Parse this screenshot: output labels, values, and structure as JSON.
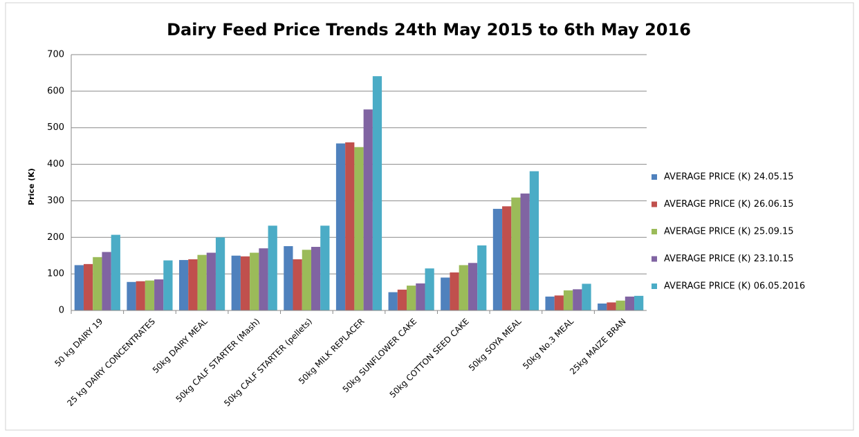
{
  "chart_data": {
    "type": "bar",
    "title": "Dairy Feed Price Trends 24th May 2015  to  6th May 2016",
    "y_label": "Price (K)",
    "categories": [
      "50 kg DAIRY 19",
      "25 kg DAIRY CONCENTRATES",
      "50kg DAIRY MEAL",
      "50kg CALF STARTER  (Mash)",
      "50kg CALF STARTER  (pellets)",
      "50kg MILK REPLACER",
      "50kg SUNFLOWER CAKE",
      "50kg COTTON SEED  CAKE",
      "50kg SOYA MEAL",
      "50kg No.3 MEAL",
      "25kg MAIZE BRAN"
    ],
    "series": [
      {
        "name": "AVERAGE PRICE (K) 24.05.15",
        "color": "#4f81bd",
        "values": [
          124,
          78,
          138,
          150,
          176,
          457,
          50,
          90,
          278,
          38,
          19
        ]
      },
      {
        "name": "AVERAGE PRICE (K) 26.06.15",
        "color": "#c0504d",
        "values": [
          127,
          80,
          140,
          148,
          140,
          460,
          57,
          104,
          285,
          41,
          22
        ]
      },
      {
        "name": "AVERAGE PRICE (K) 25.09.15",
        "color": "#9bbb59",
        "values": [
          146,
          82,
          152,
          158,
          166,
          447,
          68,
          124,
          309,
          55,
          27
        ]
      },
      {
        "name": "AVERAGE PRICE (K) 23.10.15",
        "color": "#8064a2",
        "values": [
          160,
          85,
          158,
          170,
          174,
          550,
          74,
          130,
          320,
          58,
          38
        ]
      },
      {
        "name": "AVERAGE PRICE (K) 06.05.2016",
        "color": "#4bacc6",
        "values": [
          207,
          137,
          200,
          232,
          232,
          641,
          115,
          178,
          381,
          73,
          40
        ]
      }
    ],
    "ylim": [
      0,
      700
    ],
    "yticks": [
      0,
      100,
      200,
      300,
      400,
      500,
      600,
      700
    ],
    "grid": true,
    "legend": "right"
  }
}
